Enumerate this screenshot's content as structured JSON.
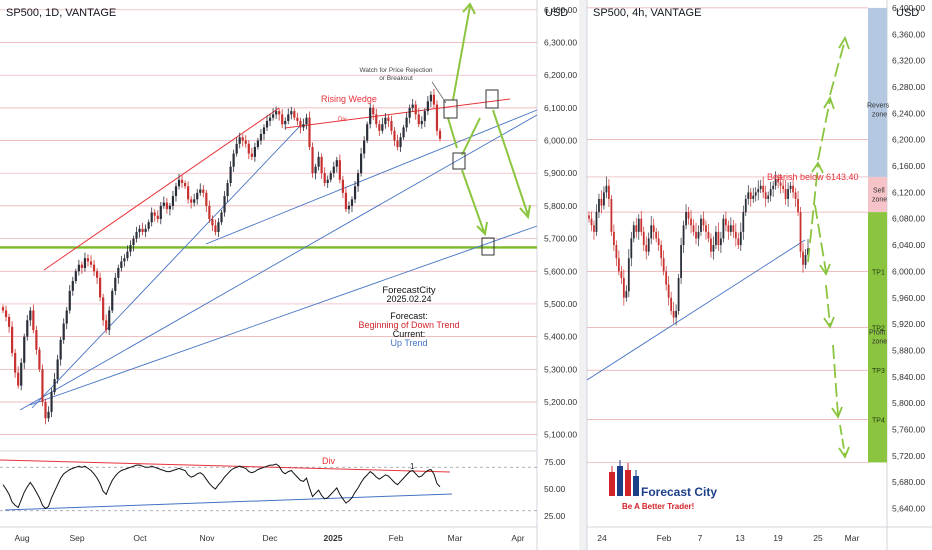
{
  "colors": {
    "up": "#2a2e39",
    "down": "#c8312f",
    "red_line": "#e8333a",
    "blue_line": "#4472c4",
    "green_arrow": "#8bc53f",
    "support_green": "#7cb928",
    "hline": "#e8a8ae",
    "axis_text": "#333333",
    "sell_zone": "#f6c3c8",
    "reversal_zone": "#b4c8e1",
    "profit_zone": "#8bc53f",
    "brand_blue": "#1c3f8a",
    "brand_red": "#d2232a"
  },
  "left_panel": {
    "title": "SP500, 1D, VANTAGE",
    "currency": "USD",
    "rsi_currency": "",
    "annotations": {
      "rising_wedge": "Rising Wedge",
      "div_price": "Div",
      "watch": [
        "Watch for Price Rejection",
        "or Breakout"
      ],
      "rsi_div": "Div",
      "rsi_one": "1"
    },
    "forecast_box": {
      "name": "ForecastCity",
      "date": "2025.02.24",
      "forecast_label": "Forecast:",
      "forecast_value": "Beginning of Down Trend",
      "current_label": "Current:",
      "current_value": "Up Trend"
    }
  },
  "right_panel": {
    "title": "SP500, 4h, VANTAGE",
    "currency": "USD",
    "bearish_label": "Bearish below 6143.40",
    "zones": {
      "reversal": [
        "Revers",
        "zone"
      ],
      "sell": [
        "Sell",
        "zone"
      ],
      "profit": [
        "Profit",
        "zone"
      ],
      "tp1": "TP1",
      "tp2": "TP2",
      "tp3": "TP3",
      "tp4": "TP4"
    },
    "logo": {
      "brand": "Forecast City",
      "tagline": "Be A Better Trader!"
    }
  },
  "chart_data": [
    {
      "type": "candlestick",
      "title": "SP500, 1D, VANTAGE",
      "y_unit": "USD",
      "ylim": [
        5050,
        6430
      ],
      "y_ticks": [
        5100,
        5200,
        5300,
        5400,
        5500,
        5600,
        5700,
        5800,
        5900,
        6000,
        6100,
        6200,
        6300,
        6400
      ],
      "x_tick_labels": [
        "Aug",
        "Sep",
        "Oct",
        "Nov",
        "Dec",
        "2025",
        "Feb",
        "Mar",
        "Apr"
      ],
      "horizontal_levels": [
        5100,
        5200,
        5300,
        5400,
        5500,
        5600,
        5700,
        5800,
        5900,
        6000,
        6100,
        6200,
        6300,
        6400
      ],
      "support_level": 5673,
      "close_series": [
        5480,
        5460,
        5430,
        5350,
        5290,
        5250,
        5320,
        5400,
        5450,
        5480,
        5420,
        5360,
        5300,
        5200,
        5150,
        5170,
        5230,
        5270,
        5330,
        5390,
        5440,
        5480,
        5540,
        5570,
        5600,
        5620,
        5610,
        5640,
        5630,
        5620,
        5600,
        5580,
        5520,
        5450,
        5420,
        5480,
        5540,
        5580,
        5610,
        5630,
        5640,
        5660,
        5680,
        5700,
        5720,
        5730,
        5720,
        5730,
        5750,
        5780,
        5770,
        5760,
        5800,
        5810,
        5790,
        5800,
        5830,
        5860,
        5880,
        5870,
        5860,
        5820,
        5810,
        5820,
        5840,
        5850,
        5840,
        5800,
        5760,
        5740,
        5720,
        5750,
        5780,
        5830,
        5870,
        5920,
        5960,
        5990,
        6010,
        6000,
        5990,
        5960,
        5950,
        5980,
        6000,
        6020,
        6040,
        6060,
        6070,
        6080,
        6090,
        6080,
        6050,
        6060,
        6080,
        6090,
        6070,
        6060,
        6040,
        6050,
        6070,
        5980,
        5900,
        5920,
        5950,
        5900,
        5870,
        5880,
        5900,
        5920,
        5940,
        5880,
        5840,
        5790,
        5800,
        5820,
        5860,
        5900,
        5960,
        6000,
        6050,
        6100,
        6080,
        6050,
        6030,
        6050,
        6070,
        6060,
        6030,
        6000,
        5980,
        6010,
        6040,
        6070,
        6100,
        6110,
        6080,
        6050,
        6060,
        6090,
        6120,
        6140,
        6110,
        6030,
        6005
      ],
      "rsi": {
        "ylim": [
          15,
          85
        ],
        "y_ticks": [
          25,
          50,
          75
        ],
        "levels": [
          30,
          70
        ],
        "values": [
          54,
          50,
          45,
          38,
          35,
          33,
          40,
          47,
          52,
          56,
          52,
          47,
          42,
          35,
          32,
          34,
          42,
          48,
          54,
          60,
          64,
          66,
          68,
          69,
          70,
          71,
          70,
          71,
          69,
          67,
          64,
          60,
          55,
          48,
          45,
          52,
          58,
          62,
          65,
          67,
          68,
          69,
          70,
          71,
          72,
          72,
          71,
          70,
          70,
          71,
          70,
          69,
          68,
          67,
          66,
          66,
          67,
          68,
          69,
          68,
          67,
          63,
          61,
          62,
          64,
          65,
          63,
          59,
          55,
          52,
          50,
          54,
          57,
          61,
          64,
          67,
          69,
          70,
          71,
          70,
          69,
          66,
          65,
          66,
          68,
          69,
          70,
          71,
          72,
          72,
          73,
          71,
          66,
          64,
          66,
          67,
          64,
          61,
          58,
          57,
          60,
          51,
          43,
          46,
          49,
          44,
          41,
          42,
          45,
          48,
          51,
          45,
          41,
          37,
          39,
          42,
          47,
          51,
          56,
          60,
          63,
          66,
          64,
          61,
          59,
          61,
          63,
          62,
          59,
          56,
          54,
          57,
          60,
          63,
          66,
          67,
          64,
          61,
          62,
          65,
          67,
          68,
          64,
          55,
          52
        ]
      }
    },
    {
      "type": "candlestick",
      "title": "SP500, 4h, VANTAGE",
      "y_unit": "USD",
      "ylim": [
        5612,
        6412
      ],
      "y_ticks": [
        5640,
        5680,
        5720,
        5760,
        5800,
        5840,
        5880,
        5920,
        5960,
        6000,
        6040,
        6080,
        6120,
        6160,
        6200,
        6240,
        6280,
        6320,
        6360,
        6400
      ],
      "x_tick_labels": [
        "24",
        "Feb",
        "7",
        "13",
        "19",
        "25",
        "Mar"
      ],
      "horizontal_levels": [
        6400,
        6200,
        6143.4,
        6090,
        6000,
        5915,
        5850,
        5775,
        5710
      ],
      "bearish_level": 6143.4,
      "zones": {
        "reversal": [
          6143.4,
          6400
        ],
        "sell": [
          6090,
          6143.4
        ],
        "profit": [
          5710,
          6090
        ]
      },
      "targets": {
        "TP1": 6000,
        "TP2": 5915,
        "TP3": 5850,
        "TP4": 5775
      },
      "close_series": [
        6080,
        6070,
        6060,
        6090,
        6110,
        6100,
        6120,
        6130,
        6110,
        6060,
        6040,
        6020,
        6000,
        5990,
        5960,
        5970,
        6020,
        6050,
        6070,
        6060,
        6080,
        6060,
        6040,
        6030,
        6050,
        6070,
        6060,
        6050,
        6040,
        6020,
        6000,
        5980,
        5960,
        5940,
        5930,
        5940,
        5990,
        6040,
        6070,
        6090,
        6080,
        6070,
        6060,
        6050,
        6060,
        6080,
        6070,
        6060,
        6050,
        6030,
        6040,
        6060,
        6040,
        6050,
        6080,
        6070,
        6060,
        6070,
        6060,
        6050,
        6040,
        6060,
        6090,
        6110,
        6120,
        6110,
        6115,
        6120,
        6125,
        6130,
        6120,
        6110,
        6115,
        6125,
        6130,
        6140,
        6135,
        6130,
        6125,
        6110,
        6125,
        6130,
        6120,
        6110,
        6090,
        6030,
        6010,
        6025,
        6035
      ]
    }
  ]
}
